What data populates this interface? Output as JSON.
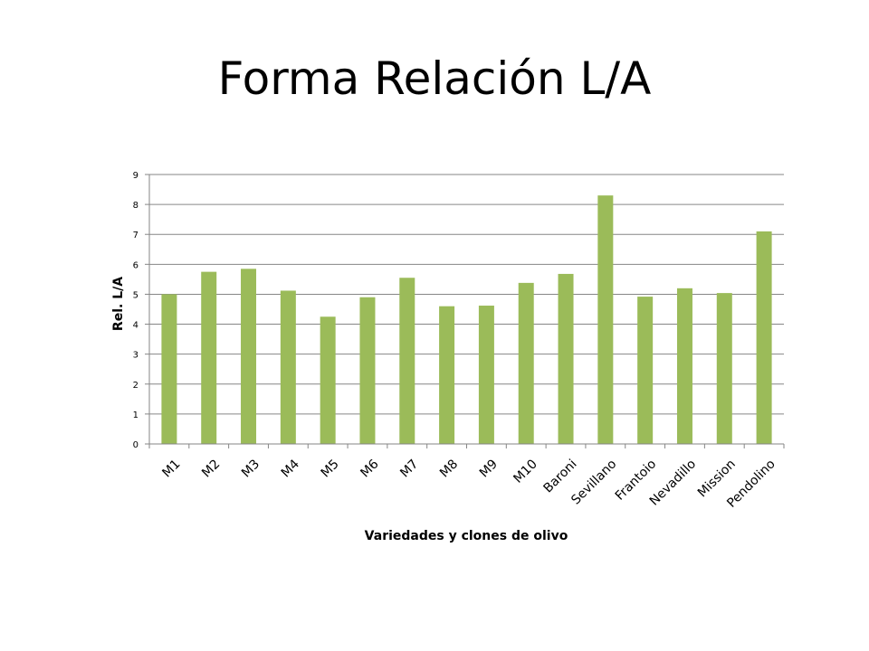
{
  "slide": {
    "title": "Forma Relación L/A"
  },
  "colors": {
    "bar": "#9BBB59",
    "grid": "#868686",
    "axis": "#868686"
  },
  "chart_data": {
    "type": "bar",
    "title": "",
    "xlabel": "Variedades y clones de olivo",
    "ylabel": "Rel. L/A",
    "categories": [
      "M1",
      "M2",
      "M3",
      "M4",
      "M5",
      "M6",
      "M7",
      "M8",
      "M9",
      "M10",
      "Baroni",
      "Sevillano",
      "Frantoio",
      "Nevadillo",
      "Mission",
      "Pendolino"
    ],
    "values": [
      5.0,
      5.75,
      5.85,
      5.12,
      4.25,
      4.9,
      5.55,
      4.6,
      4.62,
      5.38,
      5.68,
      8.3,
      4.92,
      5.2,
      5.04,
      7.1
    ],
    "ylim": [
      0,
      9
    ],
    "yticks": [
      0,
      1,
      2,
      3,
      4,
      5,
      6,
      7,
      8,
      9
    ],
    "grid": true,
    "legend": "none"
  }
}
